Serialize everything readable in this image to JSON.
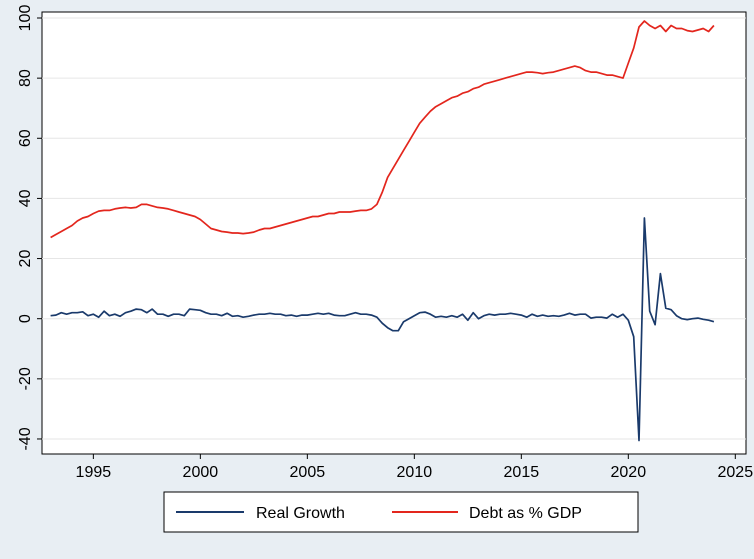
{
  "chart_data": {
    "type": "line",
    "title": "",
    "xlabel": "",
    "ylabel": "",
    "xlim": [
      1992.6,
      2025.5
    ],
    "ylim": [
      -45,
      102
    ],
    "x_ticks": [
      1995,
      2000,
      2005,
      2010,
      2015,
      2020,
      2025
    ],
    "y_ticks": [
      -40,
      -20,
      0,
      20,
      40,
      60,
      80,
      100
    ],
    "grid": "horizontal",
    "legend_position": "bottom",
    "series": [
      {
        "name": "Real Growth",
        "color": "#1a3a6b",
        "points": [
          [
            1993.0,
            1.0
          ],
          [
            1993.25,
            1.2
          ],
          [
            1993.5,
            2.0
          ],
          [
            1993.75,
            1.5
          ],
          [
            1994.0,
            2.0
          ],
          [
            1994.25,
            2.0
          ],
          [
            1994.5,
            2.3
          ],
          [
            1994.75,
            1.0
          ],
          [
            1995.0,
            1.5
          ],
          [
            1995.25,
            0.5
          ],
          [
            1995.5,
            2.5
          ],
          [
            1995.75,
            1.0
          ],
          [
            1996.0,
            1.5
          ],
          [
            1996.25,
            0.8
          ],
          [
            1996.5,
            2.0
          ],
          [
            1996.75,
            2.5
          ],
          [
            1997.0,
            3.2
          ],
          [
            1997.25,
            3.0
          ],
          [
            1997.5,
            2.0
          ],
          [
            1997.75,
            3.2
          ],
          [
            1998.0,
            1.5
          ],
          [
            1998.25,
            1.5
          ],
          [
            1998.5,
            0.8
          ],
          [
            1998.75,
            1.5
          ],
          [
            1999.0,
            1.5
          ],
          [
            1999.25,
            1.0
          ],
          [
            1999.5,
            3.2
          ],
          [
            1999.75,
            3.0
          ],
          [
            2000.0,
            2.8
          ],
          [
            2000.25,
            2.0
          ],
          [
            2000.5,
            1.5
          ],
          [
            2000.75,
            1.5
          ],
          [
            2001.0,
            1.0
          ],
          [
            2001.25,
            1.8
          ],
          [
            2001.5,
            0.8
          ],
          [
            2001.75,
            1.0
          ],
          [
            2002.0,
            0.5
          ],
          [
            2002.25,
            0.8
          ],
          [
            2002.5,
            1.2
          ],
          [
            2002.75,
            1.5
          ],
          [
            2003.0,
            1.5
          ],
          [
            2003.25,
            1.8
          ],
          [
            2003.5,
            1.5
          ],
          [
            2003.75,
            1.5
          ],
          [
            2004.0,
            1.0
          ],
          [
            2004.25,
            1.2
          ],
          [
            2004.5,
            0.8
          ],
          [
            2004.75,
            1.2
          ],
          [
            2005.0,
            1.2
          ],
          [
            2005.25,
            1.5
          ],
          [
            2005.5,
            1.8
          ],
          [
            2005.75,
            1.5
          ],
          [
            2006.0,
            1.8
          ],
          [
            2006.25,
            1.2
          ],
          [
            2006.5,
            1.0
          ],
          [
            2006.75,
            1.0
          ],
          [
            2007.0,
            1.5
          ],
          [
            2007.25,
            2.0
          ],
          [
            2007.5,
            1.5
          ],
          [
            2007.75,
            1.5
          ],
          [
            2008.0,
            1.2
          ],
          [
            2008.25,
            0.5
          ],
          [
            2008.5,
            -1.5
          ],
          [
            2008.75,
            -3.0
          ],
          [
            2009.0,
            -4.0
          ],
          [
            2009.25,
            -4.0
          ],
          [
            2009.5,
            -1.0
          ],
          [
            2009.75,
            0.0
          ],
          [
            2010.0,
            1.0
          ],
          [
            2010.25,
            2.0
          ],
          [
            2010.5,
            2.2
          ],
          [
            2010.75,
            1.5
          ],
          [
            2011.0,
            0.5
          ],
          [
            2011.25,
            0.8
          ],
          [
            2011.5,
            0.5
          ],
          [
            2011.75,
            1.0
          ],
          [
            2012.0,
            0.5
          ],
          [
            2012.25,
            1.5
          ],
          [
            2012.5,
            -0.5
          ],
          [
            2012.75,
            2.0
          ],
          [
            2013.0,
            0.0
          ],
          [
            2013.25,
            1.0
          ],
          [
            2013.5,
            1.5
          ],
          [
            2013.75,
            1.2
          ],
          [
            2014.0,
            1.5
          ],
          [
            2014.25,
            1.5
          ],
          [
            2014.5,
            1.8
          ],
          [
            2014.75,
            1.5
          ],
          [
            2015.0,
            1.2
          ],
          [
            2015.25,
            0.5
          ],
          [
            2015.5,
            1.5
          ],
          [
            2015.75,
            0.8
          ],
          [
            2016.0,
            1.2
          ],
          [
            2016.25,
            0.8
          ],
          [
            2016.5,
            1.0
          ],
          [
            2016.75,
            0.8
          ],
          [
            2017.0,
            1.2
          ],
          [
            2017.25,
            1.8
          ],
          [
            2017.5,
            1.2
          ],
          [
            2017.75,
            1.5
          ],
          [
            2018.0,
            1.5
          ],
          [
            2018.25,
            0.2
          ],
          [
            2018.5,
            0.5
          ],
          [
            2018.75,
            0.5
          ],
          [
            2019.0,
            0.2
          ],
          [
            2019.25,
            1.5
          ],
          [
            2019.5,
            0.5
          ],
          [
            2019.75,
            1.5
          ],
          [
            2020.0,
            -0.5
          ],
          [
            2020.25,
            -6.0
          ],
          [
            2020.5,
            -40.5
          ],
          [
            2020.75,
            33.5
          ],
          [
            2021.0,
            2.5
          ],
          [
            2021.25,
            -2.0
          ],
          [
            2021.5,
            15.0
          ],
          [
            2021.75,
            3.5
          ],
          [
            2022.0,
            3.0
          ],
          [
            2022.25,
            1.0
          ],
          [
            2022.5,
            0.0
          ],
          [
            2022.75,
            -0.3
          ],
          [
            2023.0,
            0.0
          ],
          [
            2023.25,
            0.2
          ],
          [
            2023.5,
            -0.2
          ],
          [
            2023.75,
            -0.5
          ],
          [
            2024.0,
            -1.0
          ]
        ]
      },
      {
        "name": "Debt as % GDP",
        "color": "#e3261d",
        "points": [
          [
            1993.0,
            27.0
          ],
          [
            1993.25,
            28.0
          ],
          [
            1993.5,
            29.0
          ],
          [
            1993.75,
            30.0
          ],
          [
            1994.0,
            31.0
          ],
          [
            1994.25,
            32.5
          ],
          [
            1994.5,
            33.5
          ],
          [
            1994.75,
            34.0
          ],
          [
            1995.0,
            35.0
          ],
          [
            1995.25,
            35.8
          ],
          [
            1995.5,
            36.0
          ],
          [
            1995.75,
            36.0
          ],
          [
            1996.0,
            36.5
          ],
          [
            1996.25,
            36.8
          ],
          [
            1996.5,
            37.0
          ],
          [
            1996.75,
            36.8
          ],
          [
            1997.0,
            37.0
          ],
          [
            1997.25,
            38.0
          ],
          [
            1997.5,
            38.0
          ],
          [
            1997.75,
            37.5
          ],
          [
            1998.0,
            37.0
          ],
          [
            1998.25,
            36.8
          ],
          [
            1998.5,
            36.5
          ],
          [
            1998.75,
            36.0
          ],
          [
            1999.0,
            35.5
          ],
          [
            1999.25,
            35.0
          ],
          [
            1999.5,
            34.5
          ],
          [
            1999.75,
            34.0
          ],
          [
            2000.0,
            33.0
          ],
          [
            2000.25,
            31.5
          ],
          [
            2000.5,
            30.0
          ],
          [
            2000.75,
            29.5
          ],
          [
            2001.0,
            29.0
          ],
          [
            2001.25,
            28.8
          ],
          [
            2001.5,
            28.5
          ],
          [
            2001.75,
            28.5
          ],
          [
            2002.0,
            28.3
          ],
          [
            2002.25,
            28.5
          ],
          [
            2002.5,
            28.8
          ],
          [
            2002.75,
            29.5
          ],
          [
            2003.0,
            30.0
          ],
          [
            2003.25,
            30.0
          ],
          [
            2003.5,
            30.5
          ],
          [
            2003.75,
            31.0
          ],
          [
            2004.0,
            31.5
          ],
          [
            2004.25,
            32.0
          ],
          [
            2004.5,
            32.5
          ],
          [
            2004.75,
            33.0
          ],
          [
            2005.0,
            33.5
          ],
          [
            2005.25,
            34.0
          ],
          [
            2005.5,
            34.0
          ],
          [
            2005.75,
            34.5
          ],
          [
            2006.0,
            35.0
          ],
          [
            2006.25,
            35.0
          ],
          [
            2006.5,
            35.5
          ],
          [
            2006.75,
            35.5
          ],
          [
            2007.0,
            35.5
          ],
          [
            2007.25,
            35.8
          ],
          [
            2007.5,
            36.0
          ],
          [
            2007.75,
            36.0
          ],
          [
            2008.0,
            36.5
          ],
          [
            2008.25,
            38.0
          ],
          [
            2008.5,
            42.0
          ],
          [
            2008.75,
            47.0
          ],
          [
            2009.0,
            50.0
          ],
          [
            2009.25,
            53.0
          ],
          [
            2009.5,
            56.0
          ],
          [
            2009.75,
            59.0
          ],
          [
            2010.0,
            62.0
          ],
          [
            2010.25,
            65.0
          ],
          [
            2010.5,
            67.0
          ],
          [
            2010.75,
            69.0
          ],
          [
            2011.0,
            70.5
          ],
          [
            2011.25,
            71.5
          ],
          [
            2011.5,
            72.5
          ],
          [
            2011.75,
            73.5
          ],
          [
            2012.0,
            74.0
          ],
          [
            2012.25,
            75.0
          ],
          [
            2012.5,
            75.5
          ],
          [
            2012.75,
            76.5
          ],
          [
            2013.0,
            77.0
          ],
          [
            2013.25,
            78.0
          ],
          [
            2013.5,
            78.5
          ],
          [
            2013.75,
            79.0
          ],
          [
            2014.0,
            79.5
          ],
          [
            2014.25,
            80.0
          ],
          [
            2014.5,
            80.5
          ],
          [
            2014.75,
            81.0
          ],
          [
            2015.0,
            81.5
          ],
          [
            2015.25,
            82.0
          ],
          [
            2015.5,
            82.0
          ],
          [
            2015.75,
            81.8
          ],
          [
            2016.0,
            81.5
          ],
          [
            2016.25,
            81.8
          ],
          [
            2016.5,
            82.0
          ],
          [
            2016.75,
            82.5
          ],
          [
            2017.0,
            83.0
          ],
          [
            2017.25,
            83.5
          ],
          [
            2017.5,
            84.0
          ],
          [
            2017.75,
            83.5
          ],
          [
            2018.0,
            82.5
          ],
          [
            2018.25,
            82.0
          ],
          [
            2018.5,
            82.0
          ],
          [
            2018.75,
            81.5
          ],
          [
            2019.0,
            81.0
          ],
          [
            2019.25,
            81.0
          ],
          [
            2019.5,
            80.5
          ],
          [
            2019.75,
            80.0
          ],
          [
            2020.0,
            85.0
          ],
          [
            2020.25,
            90.0
          ],
          [
            2020.5,
            97.0
          ],
          [
            2020.75,
            99.0
          ],
          [
            2021.0,
            97.5
          ],
          [
            2021.25,
            96.5
          ],
          [
            2021.5,
            97.5
          ],
          [
            2021.75,
            95.5
          ],
          [
            2022.0,
            97.5
          ],
          [
            2022.25,
            96.5
          ],
          [
            2022.5,
            96.5
          ],
          [
            2022.75,
            95.8
          ],
          [
            2023.0,
            95.5
          ],
          [
            2023.25,
            96.0
          ],
          [
            2023.5,
            96.5
          ],
          [
            2023.75,
            95.5
          ],
          [
            2024.0,
            97.5
          ]
        ]
      }
    ]
  }
}
